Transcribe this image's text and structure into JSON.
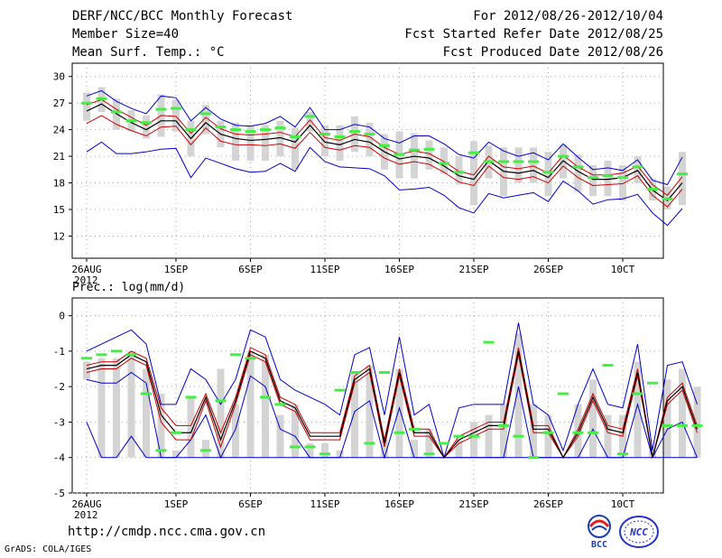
{
  "header": {
    "title": "DERF/NCC/BCC Monthly Forecast",
    "member_size": "Member Size=40",
    "variable": "Mean Surf. Temp.: °C",
    "forecast_period": "For 2012/08/26-2012/10/04",
    "start_date": "Fcst Started Refer Date 2012/08/25",
    "produced_date": "Fcst Produced Date 2012/08/26"
  },
  "footer": {
    "url": "http://cmdp.ncc.cma.gov.cn",
    "credit": "GrADS: COLA/IGES",
    "logo_bcc": "BCC",
    "logo_ncc": "NCC"
  },
  "colors": {
    "ensemble_mean": "#000000",
    "spread": "#cc0000",
    "envelope": "#0000cc",
    "bar": "#d4d4d4",
    "marker": "#44ee44",
    "grid": "#aaaaaa"
  },
  "chart_data": [
    {
      "type": "line",
      "title": "Mean Surf. Temp.: °C",
      "ylabel": "°C",
      "ylim": [
        9.5,
        31.5
      ],
      "yticks": [
        12,
        15,
        18,
        21,
        24,
        27,
        30
      ],
      "xtick_labels": [
        "26AUG",
        "1SEP",
        "6SEP",
        "11SEP",
        "16SEP",
        "21SEP",
        "26SEP",
        "10CT"
      ],
      "xtick_days": [
        0,
        6,
        11,
        16,
        21,
        26,
        31,
        36
      ],
      "year_label": "2012",
      "days": 40,
      "series": [
        {
          "name": "mean",
          "values": [
            26.1,
            26.9,
            25.8,
            24.8,
            24.0,
            25.0,
            25.0,
            23.0,
            24.8,
            23.5,
            23.0,
            22.8,
            22.9,
            23.1,
            22.6,
            24.5,
            22.6,
            22.3,
            22.9,
            22.6,
            21.5,
            20.7,
            21.0,
            20.8,
            19.9,
            18.8,
            18.4,
            20.5,
            19.3,
            19.1,
            19.4,
            18.6,
            20.5,
            19.3,
            18.4,
            18.4,
            18.6,
            19.4,
            17.2,
            16.0,
            18.0
          ]
        },
        {
          "name": "upper",
          "values": [
            26.8,
            27.4,
            26.3,
            25.4,
            24.5,
            25.6,
            25.5,
            23.6,
            25.4,
            24.1,
            23.5,
            23.4,
            23.5,
            23.7,
            23.2,
            25.1,
            23.1,
            22.8,
            23.5,
            23.2,
            22.0,
            21.2,
            21.6,
            21.3,
            20.4,
            19.3,
            18.9,
            21.0,
            19.8,
            19.6,
            19.9,
            19.1,
            21.1,
            19.8,
            18.9,
            18.9,
            19.1,
            19.9,
            17.8,
            16.6,
            18.7
          ]
        },
        {
          "name": "lower",
          "values": [
            24.7,
            25.6,
            24.6,
            23.9,
            23.3,
            24.3,
            24.4,
            22.3,
            24.2,
            22.7,
            22.3,
            22.3,
            22.2,
            22.4,
            21.9,
            23.7,
            22.0,
            21.7,
            22.2,
            22.0,
            20.8,
            20.1,
            20.4,
            20.1,
            19.2,
            18.1,
            17.7,
            19.9,
            18.6,
            18.4,
            18.7,
            18.0,
            19.9,
            18.6,
            17.7,
            17.8,
            17.9,
            18.8,
            16.6,
            15.3,
            17.3
          ]
        },
        {
          "name": "max",
          "values": [
            27.8,
            28.4,
            27.2,
            26.4,
            25.8,
            27.8,
            27.6,
            25.0,
            26.5,
            25.2,
            24.5,
            24.4,
            24.7,
            25.5,
            24.3,
            26.5,
            24.0,
            24.0,
            24.6,
            24.3,
            23.0,
            22.5,
            23.3,
            23.3,
            22.4,
            21.2,
            20.8,
            22.6,
            21.6,
            21.0,
            21.4,
            20.6,
            22.4,
            20.9,
            19.5,
            19.7,
            19.4,
            20.6,
            18.3,
            17.8,
            20.9
          ]
        },
        {
          "name": "min",
          "values": [
            21.5,
            22.6,
            21.3,
            21.3,
            21.5,
            21.8,
            21.9,
            18.6,
            20.8,
            20.2,
            19.6,
            19.2,
            19.3,
            20.2,
            19.3,
            22.0,
            20.4,
            19.8,
            19.7,
            19.6,
            18.8,
            17.2,
            17.3,
            17.5,
            16.6,
            15.2,
            14.6,
            16.8,
            16.3,
            16.6,
            16.9,
            15.9,
            18.2,
            17.1,
            15.6,
            16.1,
            16.2,
            16.7,
            14.6,
            13.2,
            15.1
          ]
        },
        {
          "name": "bar_top",
          "values": [
            28.2,
            28.8,
            27.5,
            26.2,
            25.6,
            28.0,
            27.4,
            25.0,
            26.8,
            25.0,
            24.8,
            24.5,
            24.5,
            25.0,
            24.2,
            26.0,
            24.5,
            24.5,
            25.5,
            24.8,
            23.5,
            23.8,
            23.6,
            22.8,
            22.0,
            21.0,
            22.7,
            22.2,
            22.0,
            22.0,
            22.0,
            21.5,
            22.3,
            21.2,
            20.0,
            20.5,
            20.0,
            21.0,
            18.5,
            17.6,
            21.5
          ]
        },
        {
          "name": "bar_bottom",
          "values": [
            25.0,
            26.0,
            24.0,
            23.8,
            23.0,
            23.2,
            23.8,
            21.0,
            23.5,
            22.0,
            20.5,
            20.5,
            20.5,
            21.0,
            19.5,
            23.8,
            21.0,
            20.5,
            21.5,
            21.0,
            19.5,
            18.5,
            18.5,
            19.5,
            19.0,
            17.8,
            15.5,
            18.5,
            16.5,
            18.0,
            18.0,
            16.5,
            18.5,
            17.0,
            16.5,
            16.5,
            16.0,
            18.0,
            16.0,
            15.0,
            15.5
          ]
        },
        {
          "name": "marker",
          "values": [
            27.0,
            27.5,
            26.0,
            25.0,
            24.8,
            26.3,
            26.4,
            24.0,
            25.8,
            24.3,
            24.0,
            23.8,
            24.0,
            24.2,
            23.2,
            25.5,
            23.5,
            23.2,
            23.8,
            23.5,
            22.2,
            21.2,
            21.7,
            21.8,
            20.2,
            19.2,
            21.4,
            20.4,
            20.4,
            20.4,
            20.4,
            19.2,
            21.0,
            19.8,
            18.6,
            18.8,
            18.6,
            19.8,
            17.3,
            16.2,
            19.0
          ]
        }
      ]
    },
    {
      "type": "line",
      "title": "Prec.: log(mm/d)",
      "ylabel": "log(mm/d)",
      "ylim": [
        -5,
        0.5
      ],
      "yticks": [
        -5,
        -4,
        -3,
        -2,
        -1,
        0
      ],
      "xtick_labels": [
        "26AUG",
        "1SEP",
        "6SEP",
        "11SEP",
        "16SEP",
        "21SEP",
        "26SEP",
        "10CT"
      ],
      "xtick_days": [
        0,
        6,
        11,
        16,
        21,
        26,
        31,
        36
      ],
      "year_label": "2012",
      "days": 40,
      "series": [
        {
          "name": "mean",
          "values": [
            -1.5,
            -1.4,
            -1.4,
            -1.1,
            -1.3,
            -2.8,
            -3.3,
            -3.3,
            -2.3,
            -3.5,
            -2.4,
            -1.0,
            -1.2,
            -2.4,
            -2.6,
            -3.4,
            -3.4,
            -3.4,
            -1.8,
            -1.5,
            -3.6,
            -1.6,
            -3.3,
            -3.3,
            -4.0,
            -3.5,
            -3.3,
            -3.1,
            -3.1,
            -1.0,
            -3.2,
            -3.2,
            -4.0,
            -3.3,
            -2.3,
            -3.2,
            -3.3,
            -1.6,
            -4.0,
            -2.4,
            -2.0,
            -3.2
          ]
        },
        {
          "name": "upper",
          "values": [
            -1.4,
            -1.3,
            -1.3,
            -1.0,
            -1.2,
            -2.6,
            -3.1,
            -3.1,
            -2.2,
            -3.3,
            -2.3,
            -0.9,
            -1.1,
            -2.3,
            -2.5,
            -3.3,
            -3.3,
            -3.3,
            -1.7,
            -1.4,
            -3.5,
            -1.5,
            -3.2,
            -3.2,
            -4.0,
            -3.4,
            -3.2,
            -3.0,
            -3.0,
            -0.9,
            -3.1,
            -3.1,
            -4.0,
            -3.2,
            -2.2,
            -3.1,
            -3.2,
            -1.5,
            -4.0,
            -2.3,
            -1.9,
            -3.1
          ]
        },
        {
          "name": "lower",
          "values": [
            -1.6,
            -1.5,
            -1.5,
            -1.2,
            -1.4,
            -3.0,
            -3.5,
            -3.5,
            -2.4,
            -3.7,
            -2.5,
            -1.1,
            -1.3,
            -2.5,
            -2.7,
            -3.5,
            -3.5,
            -3.5,
            -1.9,
            -1.6,
            -3.7,
            -1.7,
            -3.4,
            -3.4,
            -4.0,
            -3.6,
            -3.4,
            -3.2,
            -3.2,
            -1.1,
            -3.3,
            -3.3,
            -4.0,
            -3.4,
            -2.4,
            -3.3,
            -3.4,
            -1.7,
            -4.0,
            -2.5,
            -2.1,
            -3.3
          ]
        },
        {
          "name": "max",
          "values": [
            -1.0,
            -0.8,
            -0.6,
            -0.4,
            -0.8,
            -2.5,
            -2.5,
            -1.5,
            -1.8,
            -2.5,
            -1.8,
            -0.4,
            -0.6,
            -1.8,
            -2.1,
            -2.3,
            -2.5,
            -2.8,
            -1.1,
            -0.9,
            -2.8,
            -0.6,
            -2.8,
            -2.5,
            -4.0,
            -2.6,
            -2.5,
            -2.5,
            -2.5,
            -0.2,
            -2.5,
            -2.8,
            -3.8,
            -2.5,
            -1.5,
            -2.5,
            -2.6,
            -0.8,
            -3.8,
            -1.4,
            -1.3,
            -2.5
          ]
        },
        {
          "name": "min",
          "values": [
            -1.8,
            -1.9,
            -1.9,
            -1.6,
            -1.9,
            -4.0,
            -4.0,
            -3.5,
            -2.8,
            -4.0,
            -3.2,
            -1.7,
            -2.0,
            -3.2,
            -3.4,
            -4.0,
            -4.0,
            -4.0,
            -2.7,
            -2.4,
            -4.0,
            -2.6,
            -4.0,
            -4.0,
            -4.0,
            -4.0,
            -4.0,
            -4.0,
            -4.0,
            -2.0,
            -4.0,
            -4.0,
            -4.0,
            -4.0,
            -3.2,
            -4.0,
            -4.0,
            -2.5,
            -4.0,
            -3.2,
            -3.0,
            -4.0
          ]
        },
        {
          "name": "min2",
          "values": [
            -3.0,
            -4.0,
            -4.0,
            -3.4,
            -4.0,
            -4.0,
            -4.0,
            -4.0,
            -4.0,
            -4.0,
            -4.0,
            -4.0,
            -4.0,
            -4.0,
            -4.0,
            -4.0,
            -4.0,
            -4.0,
            -4.0,
            -4.0,
            -4.0,
            -4.0,
            -4.0,
            -4.0,
            -4.0,
            -4.0,
            -4.0,
            -4.0,
            -4.0,
            -4.0,
            -4.0,
            -4.0,
            -4.0,
            -4.0,
            -4.0,
            -4.0,
            -4.0,
            -4.0,
            -4.0,
            -4.0,
            -4.0,
            -4.0
          ]
        },
        {
          "name": "bar_top",
          "values": [
            -1.3,
            -1.2,
            -1.2,
            -1.0,
            -1.5,
            -2.2,
            -3.8,
            -2.3,
            -3.5,
            -1.5,
            -2.5,
            -1.0,
            -1.1,
            -2.8,
            -2.5,
            -3.6,
            -3.6,
            -3.8,
            -1.6,
            -1.4,
            -3.5,
            -1.5,
            -3.5,
            -3.2,
            -4.0,
            -3.5,
            -3.0,
            -2.8,
            -2.5,
            -0.5,
            -2.5,
            -2.8,
            -4.0,
            -2.5,
            -1.8,
            -2.8,
            -2.8,
            -1.3,
            -3.8,
            -1.8,
            -1.5,
            -2.0
          ]
        },
        {
          "name": "bar_bottom",
          "values": [
            -1.8,
            -4.0,
            -4.0,
            -4.0,
            -4.0,
            -4.0,
            -4.0,
            -4.0,
            -4.0,
            -4.0,
            -4.0,
            -4.0,
            -4.0,
            -4.0,
            -4.0,
            -4.0,
            -4.0,
            -4.0,
            -4.0,
            -4.0,
            -4.0,
            -4.0,
            -4.0,
            -4.0,
            -4.0,
            -4.0,
            -4.0,
            -4.0,
            -4.0,
            -4.0,
            -4.0,
            -4.0,
            -4.0,
            -4.0,
            -4.0,
            -4.0,
            -4.0,
            -4.0,
            -4.0,
            -4.0,
            -4.0,
            -4.0
          ]
        },
        {
          "name": "marker",
          "values": [
            -1.2,
            -1.1,
            -1.0,
            -1.1,
            -2.2,
            -3.8,
            -3.3,
            -2.3,
            -3.8,
            -2.4,
            -1.1,
            -1.2,
            -2.3,
            -2.5,
            -3.7,
            -3.7,
            -3.9,
            -2.1,
            -1.6,
            -3.6,
            -1.6,
            -3.3,
            -3.2,
            -3.9,
            -3.6,
            -3.4,
            -3.4,
            -0.75,
            -3.1,
            -3.4,
            -4.0,
            -3.3,
            -2.2,
            -3.3,
            -3.3,
            -1.4,
            -3.9,
            -2.2,
            -1.9,
            -3.1,
            -3.1,
            -3.1
          ]
        }
      ]
    }
  ]
}
